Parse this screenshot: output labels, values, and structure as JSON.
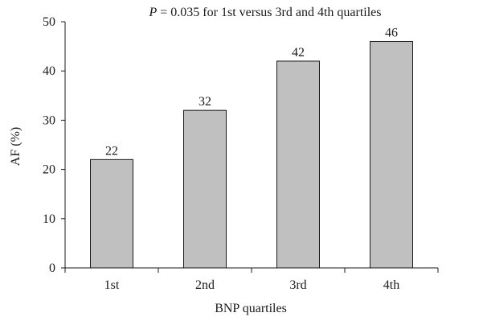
{
  "chart_data": {
    "type": "bar",
    "title_prefix": "P",
    "title_rest": " = 0.035 for 1st versus 3rd and 4th quartiles",
    "xlabel": "BNP quartiles",
    "ylabel": "AF (%)",
    "categories": [
      "1st",
      "2nd",
      "3rd",
      "4th"
    ],
    "values": [
      22,
      32,
      42,
      46
    ],
    "data_labels": [
      "22",
      "32",
      "42",
      "46"
    ],
    "ylim": [
      0,
      50
    ],
    "yticks": [
      0,
      10,
      20,
      30,
      40,
      50
    ],
    "grid": false,
    "legend": "none",
    "bar_color": "#c0c0c0",
    "bar_edge_color": "#1a1a1a"
  }
}
